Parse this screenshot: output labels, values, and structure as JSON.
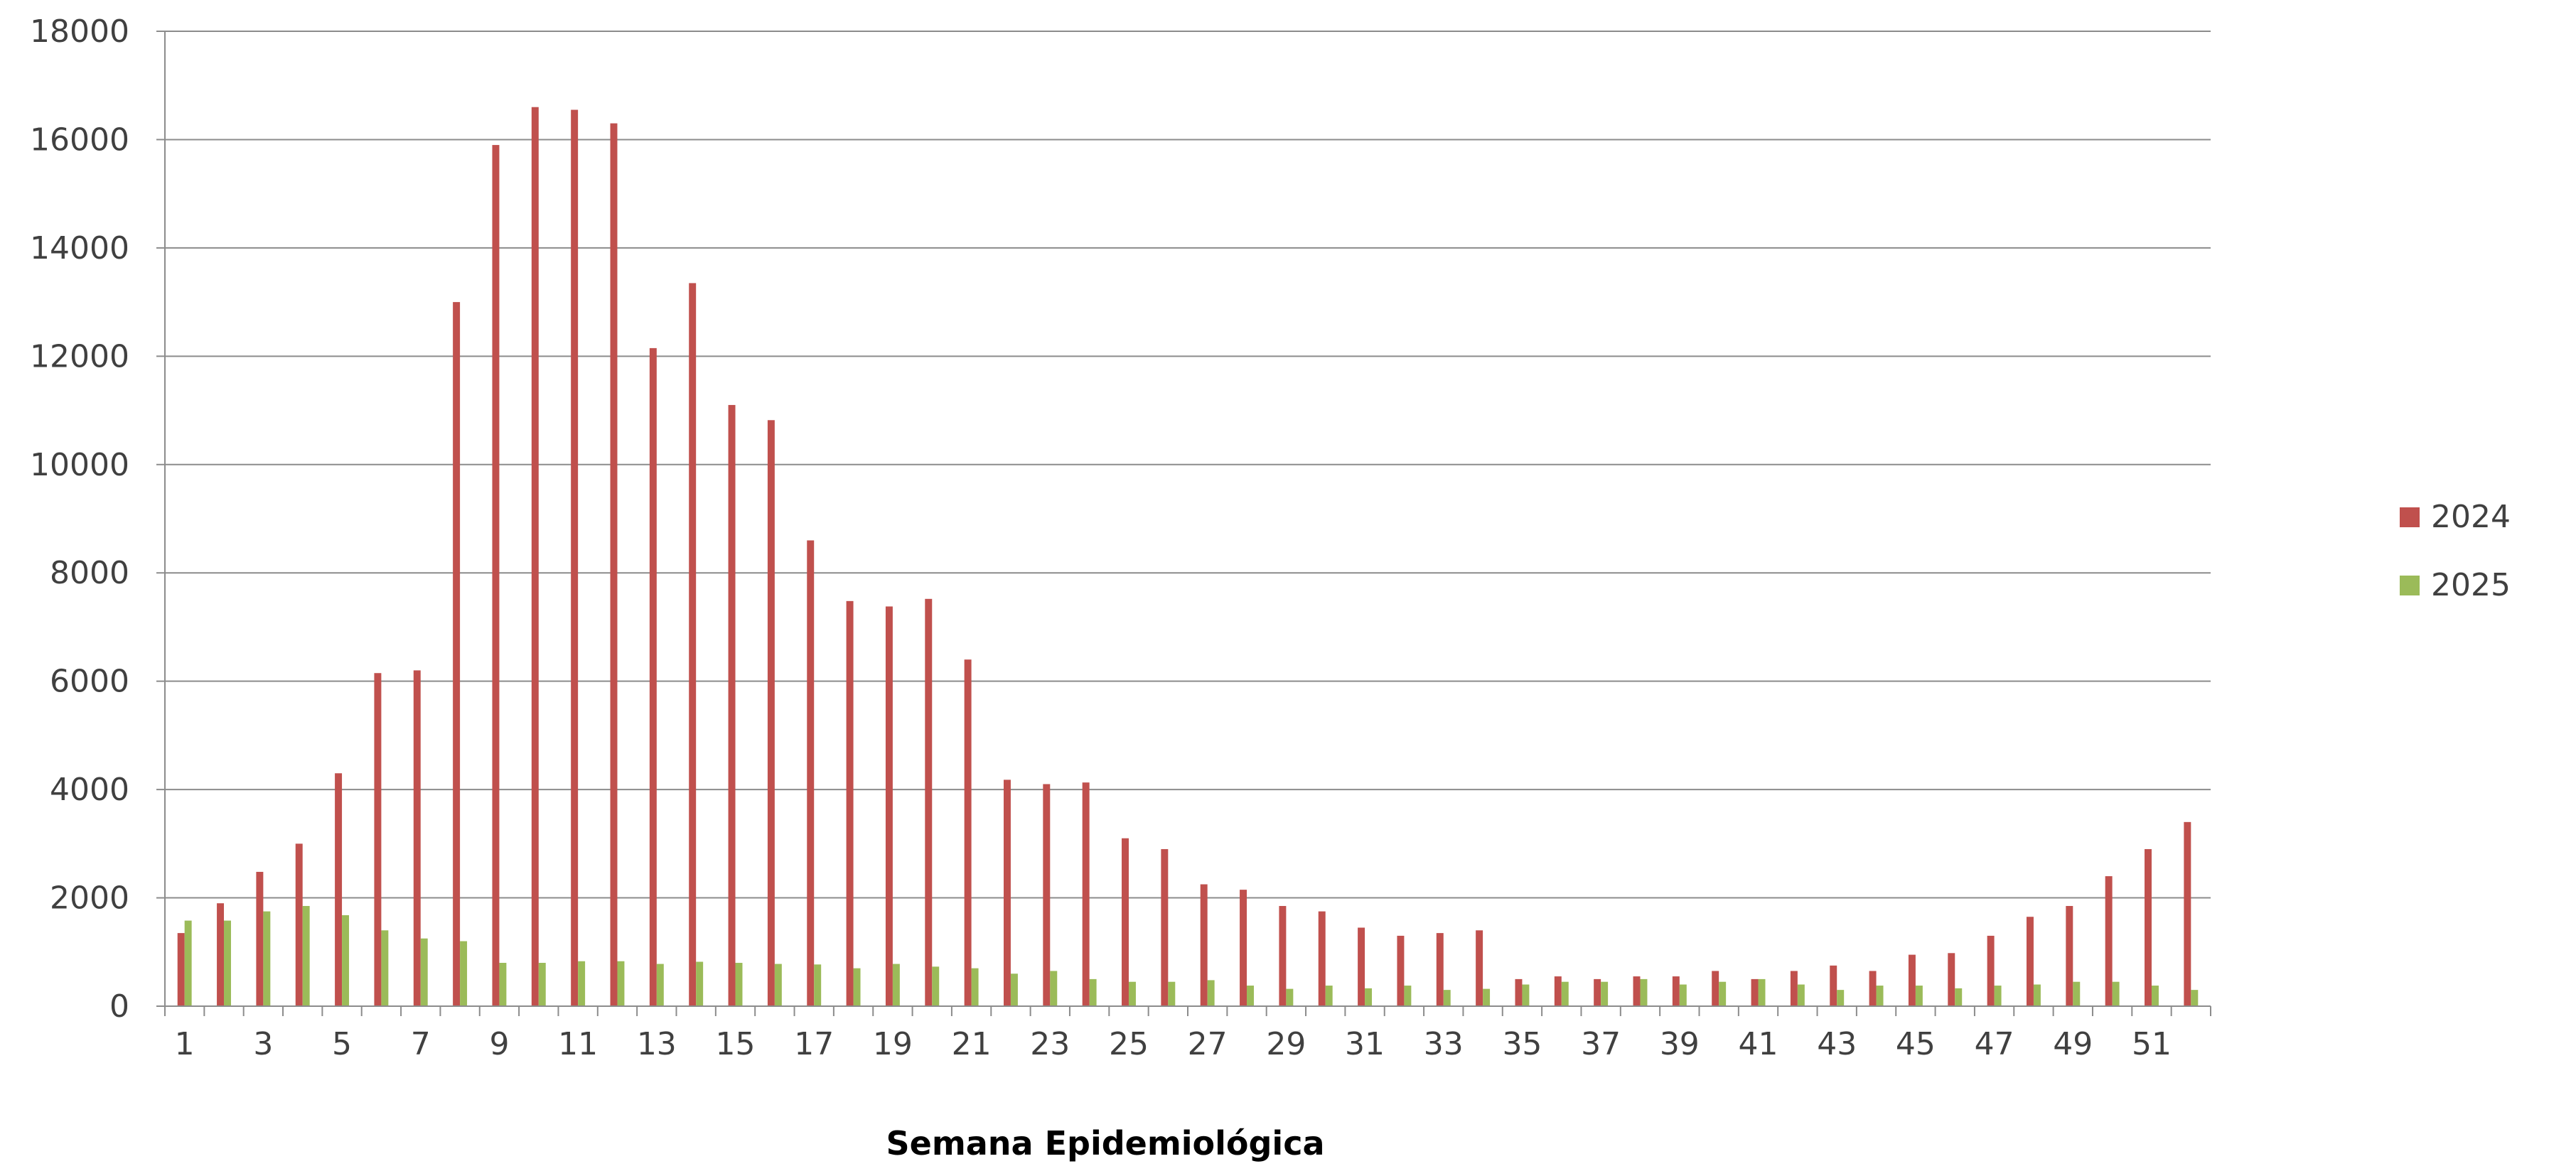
{
  "chart_data": {
    "type": "bar",
    "xlabel": "Semana Epidemiológica",
    "ylabel": "",
    "ylim": [
      0,
      18000
    ],
    "yticks": [
      0,
      2000,
      4000,
      6000,
      8000,
      10000,
      12000,
      14000,
      16000,
      18000
    ],
    "grid": true,
    "legend_position": "right",
    "categories": [
      1,
      2,
      3,
      4,
      5,
      6,
      7,
      8,
      9,
      10,
      11,
      12,
      13,
      14,
      15,
      16,
      17,
      18,
      19,
      20,
      21,
      22,
      23,
      24,
      25,
      26,
      27,
      28,
      29,
      30,
      31,
      32,
      33,
      34,
      35,
      36,
      37,
      38,
      39,
      40,
      41,
      42,
      43,
      44,
      45,
      46,
      47,
      48,
      49,
      50,
      51,
      52
    ],
    "x_tick_labels": [
      "1",
      "3",
      "5",
      "7",
      "9",
      "11",
      "13",
      "15",
      "17",
      "19",
      "21",
      "23",
      "25",
      "27",
      "29",
      "31",
      "33",
      "35",
      "37",
      "39",
      "41",
      "43",
      "45",
      "47",
      "49",
      "51"
    ],
    "series": [
      {
        "name": "2024",
        "color": "#C0504D",
        "values": [
          1350,
          1900,
          2480,
          3000,
          4300,
          6150,
          6200,
          13000,
          15900,
          16600,
          16550,
          16300,
          12150,
          13350,
          11100,
          10820,
          8600,
          7480,
          7380,
          7520,
          6400,
          4180,
          4100,
          4130,
          3100,
          2900,
          2250,
          2150,
          1850,
          1750,
          1450,
          1300,
          1350,
          1400,
          500,
          550,
          500,
          550,
          550,
          650,
          500,
          650,
          750,
          650,
          950,
          980,
          1300,
          1650,
          1850,
          2400,
          2900,
          3400
        ]
      },
      {
        "name": "2025",
        "color": "#9BBB59",
        "values": [
          1580,
          1580,
          1750,
          1850,
          1680,
          1400,
          1250,
          1200,
          800,
          800,
          830,
          830,
          780,
          820,
          800,
          780,
          770,
          700,
          780,
          730,
          700,
          600,
          650,
          500,
          450,
          450,
          480,
          380,
          320,
          380,
          330,
          380,
          300,
          320,
          400,
          450,
          450,
          500,
          400,
          450,
          500,
          400,
          300,
          380,
          380,
          330,
          380,
          400,
          450,
          450,
          380,
          300
        ]
      }
    ]
  }
}
